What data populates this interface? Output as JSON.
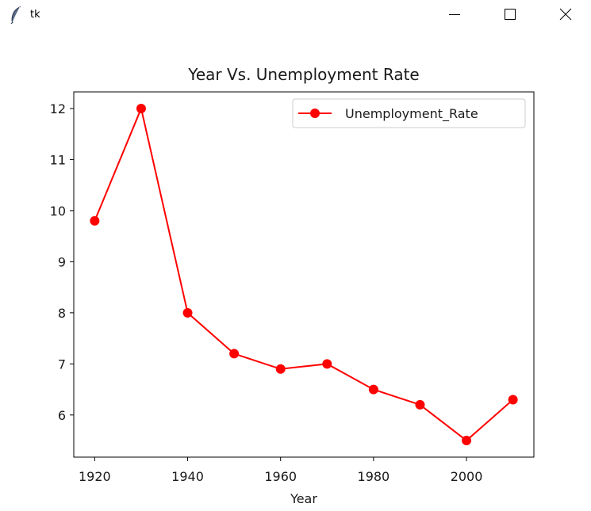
{
  "window": {
    "title": "tk",
    "icon": "feather-icon",
    "controls": [
      "minimize-icon",
      "maximize-icon",
      "close-icon"
    ]
  },
  "chart_data": {
    "type": "line",
    "title": "Year Vs. Unemployment Rate",
    "xlabel": "Year",
    "ylabel": "",
    "x": [
      1920,
      1930,
      1940,
      1950,
      1960,
      1970,
      1980,
      1990,
      2000,
      2010
    ],
    "series": [
      {
        "name": "Unemployment_Rate",
        "values": [
          9.8,
          12,
          8,
          7.2,
          6.9,
          7,
          6.5,
          6.2,
          5.5,
          6.3
        ],
        "color": "#ff0000",
        "marker": "circle"
      }
    ],
    "xticks": [
      1920,
      1940,
      1960,
      1980,
      2000
    ],
    "yticks": [
      6,
      7,
      8,
      9,
      10,
      11,
      12
    ],
    "xlim": [
      1915.5,
      2014.5
    ],
    "ylim": [
      5.175,
      12.325
    ],
    "grid": false,
    "legend": "top-right"
  }
}
